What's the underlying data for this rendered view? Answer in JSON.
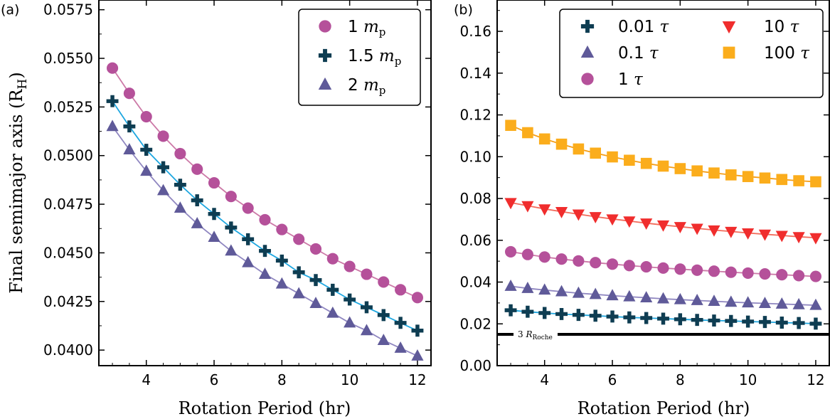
{
  "chart_data": [
    {
      "panel_label": "(a)",
      "type": "line+scatter",
      "xlabel": "Rotation Period (hr)",
      "ylabel": "Final semimajor axis (R",
      "ylabel_sub": "H",
      "ylabel_close": ")",
      "xlim": [
        2.6,
        12.4
      ],
      "ylim": [
        0.0392,
        0.058
      ],
      "xticks": [
        4,
        6,
        8,
        10,
        12
      ],
      "xtick_labels": [
        "4",
        "6",
        "8",
        "10",
        "12"
      ],
      "yticks": [
        0.04,
        0.0425,
        0.045,
        0.0475,
        0.05,
        0.0525,
        0.055,
        0.0575
      ],
      "ytick_labels": [
        "0.0400",
        "0.0425",
        "0.0450",
        "0.0475",
        "0.0500",
        "0.0525",
        "0.0550",
        "0.0575"
      ],
      "x": [
        3,
        3.5,
        4,
        4.5,
        5,
        5.5,
        6,
        6.5,
        7,
        7.5,
        8,
        8.5,
        9,
        9.5,
        10,
        10.5,
        11,
        11.5,
        12
      ],
      "series": [
        {
          "name": "1 m_p",
          "legend_num": "1 ",
          "legend_unit": "m",
          "legend_sub": "p",
          "marker": "circle",
          "color": "#b5519a",
          "line_color": "#cc79a7",
          "values": [
            0.0545,
            0.0532,
            0.052,
            0.051,
            0.0501,
            0.0493,
            0.0486,
            0.0479,
            0.0473,
            0.0467,
            0.0462,
            0.0457,
            0.0452,
            0.0447,
            0.0443,
            0.0439,
            0.0435,
            0.0431,
            0.0427
          ]
        },
        {
          "name": "1.5 m_p",
          "legend_num": "1.5 ",
          "legend_unit": "m",
          "legend_sub": "p",
          "marker": "plus",
          "color": "#0e3d52",
          "line_color": "#1ea7e0",
          "values": [
            0.0528,
            0.0515,
            0.0503,
            0.0494,
            0.0485,
            0.0477,
            0.047,
            0.0463,
            0.0457,
            0.0451,
            0.0446,
            0.044,
            0.0436,
            0.0431,
            0.0426,
            0.0422,
            0.0418,
            0.0414,
            0.041
          ]
        },
        {
          "name": "2 m_p",
          "legend_num": "2 ",
          "legend_unit": "m",
          "legend_sub": "p",
          "marker": "triangle",
          "color": "#5f5a99",
          "line_color": "#8f86c0",
          "values": [
            0.0515,
            0.0503,
            0.0492,
            0.0482,
            0.0473,
            0.0465,
            0.0458,
            0.0451,
            0.0445,
            0.0439,
            0.0434,
            0.0429,
            0.0424,
            0.0419,
            0.0414,
            0.041,
            0.0405,
            0.0401,
            0.0397
          ]
        }
      ]
    },
    {
      "panel_label": "(b)",
      "type": "line+scatter",
      "xlabel": "Rotation Period (hr)",
      "xlim": [
        2.6,
        12.4
      ],
      "ylim": [
        0.0,
        0.175
      ],
      "xticks": [
        4,
        6,
        8,
        10,
        12
      ],
      "xtick_labels": [
        "4",
        "6",
        "8",
        "10",
        "12"
      ],
      "yticks": [
        0,
        0.02,
        0.04,
        0.06,
        0.08,
        0.1,
        0.12,
        0.14,
        0.16
      ],
      "ytick_labels": [
        "0.00",
        "0.02",
        "0.04",
        "0.06",
        "0.08",
        "0.10",
        "0.12",
        "0.14",
        "0.16"
      ],
      "x": [
        3,
        3.5,
        4,
        4.5,
        5,
        5.5,
        6,
        6.5,
        7,
        7.5,
        8,
        8.5,
        9,
        9.5,
        10,
        10.5,
        11,
        11.5,
        12
      ],
      "reference_line": {
        "value": 0.015,
        "label_prefix": "3 ",
        "label_main": "R",
        "label_sub": "Roche"
      },
      "series": [
        {
          "name": "0.01 τ",
          "legend_num": "0.01 ",
          "legend_unit": "τ",
          "marker": "plus",
          "color": "#0e3d52",
          "line_color": "#1ea7e0",
          "values": [
            0.0265,
            0.0258,
            0.0252,
            0.0247,
            0.0243,
            0.0239,
            0.0235,
            0.0231,
            0.0228,
            0.0225,
            0.0222,
            0.0219,
            0.0216,
            0.0214,
            0.0211,
            0.0209,
            0.0206,
            0.0204,
            0.0201
          ]
        },
        {
          "name": "0.1 τ",
          "legend_num": "0.1 ",
          "legend_unit": "τ",
          "marker": "triangle",
          "color": "#5f5a99",
          "line_color": "#8f86c0",
          "values": [
            0.038,
            0.037,
            0.0362,
            0.0354,
            0.0347,
            0.0341,
            0.0335,
            0.033,
            0.0325,
            0.032,
            0.0316,
            0.0312,
            0.0308,
            0.0304,
            0.0301,
            0.0298,
            0.0295,
            0.0292,
            0.0289
          ]
        },
        {
          "name": "1 τ",
          "legend_num": "1 ",
          "legend_unit": "τ",
          "marker": "circle",
          "color": "#b5519a",
          "line_color": "#cc79a7",
          "values": [
            0.0545,
            0.0532,
            0.052,
            0.051,
            0.0501,
            0.0493,
            0.0486,
            0.0479,
            0.0473,
            0.0467,
            0.0462,
            0.0457,
            0.0452,
            0.0447,
            0.0443,
            0.0439,
            0.0435,
            0.0431,
            0.0427
          ]
        },
        {
          "name": "10 τ",
          "legend_num": "10 ",
          "legend_unit": "τ",
          "marker": "triangle-down",
          "color": "#f02d2d",
          "line_color": "#f26b5b",
          "values": [
            0.078,
            0.0765,
            0.075,
            0.0737,
            0.0725,
            0.0713,
            0.0702,
            0.0692,
            0.0682,
            0.0673,
            0.0665,
            0.0657,
            0.0649,
            0.0642,
            0.0635,
            0.0629,
            0.0623,
            0.0617,
            0.0612
          ]
        },
        {
          "name": "100 τ",
          "legend_num": "100 ",
          "legend_unit": "τ",
          "marker": "square",
          "color": "#fbad1c",
          "line_color": "#f59e17",
          "values": [
            0.115,
            0.1115,
            0.1085,
            0.106,
            0.1037,
            0.1017,
            0.0999,
            0.0983,
            0.0968,
            0.0955,
            0.0943,
            0.0932,
            0.0922,
            0.0913,
            0.0905,
            0.0898,
            0.0891,
            0.0885,
            0.088
          ]
        }
      ]
    }
  ]
}
